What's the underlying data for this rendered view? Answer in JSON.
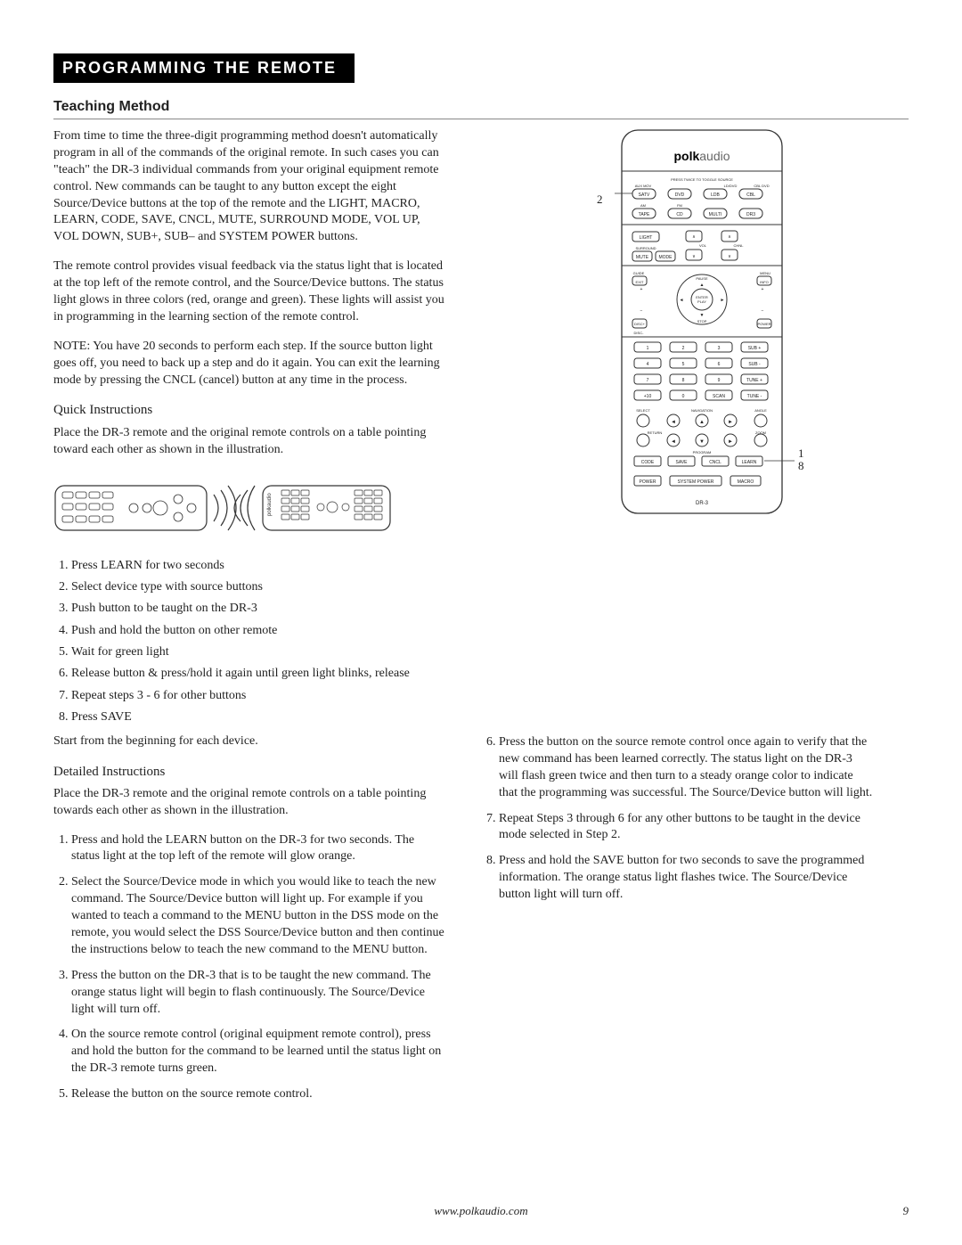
{
  "banner": "PROGRAMMING THE REMOTE",
  "subhead": "Teaching Method",
  "para1": "From time to time the three-digit programming method doesn't automatically program in all of the commands of the original remote. In such cases you can \"teach\" the DR-3 individual commands from your original equipment remote control. New commands can be taught to any button except the eight Source/Device buttons at the top of the remote and the LIGHT, MACRO, LEARN, CODE, SAVE, CNCL, MUTE, SURROUND MODE, VOL UP, VOL DOWN, SUB+, SUB– and SYSTEM POWER buttons.",
  "para2": "The remote control provides visual feedback via the status light that is located at the top left of the remote control, and the Source/Device buttons. The status light glows in three colors (red, orange and green). These lights will assist you in programming in the learning section of the remote control.",
  "para3": "NOTE: You have 20 seconds to perform each step. If the source button light goes off, you need to back up a step and do it again. You can exit the learning mode by pressing the CNCL (cancel) button at any time in the process.",
  "quick_label": "Quick Instructions",
  "quick_intro": "Place the DR-3 remote and the original remote controls on a table pointing toward each other as shown in the illustration.",
  "quick_steps": [
    "Press LEARN for two seconds",
    "Select device type with source buttons",
    "Push button to be taught on the DR-3",
    "Push and hold the button on other remote",
    "Wait for green light",
    "Release button & press/hold it again until green light blinks, release",
    "Repeat steps 3 - 6 for other buttons",
    "Press SAVE"
  ],
  "quick_outro": "Start from the beginning for each device.",
  "detailed_label": "Detailed Instructions",
  "detailed_intro": "Place the DR-3 remote and the original remote controls on a table pointing towards each other as shown in the illustration.",
  "detailed_left": [
    "Press and hold the LEARN button on the DR-3 for two seconds. The status light at the top left of the remote will glow orange.",
    "Select the Source/Device mode in which you would like to teach the new command. The Source/Device button will light up. For example if you wanted to teach a command to the MENU button in the DSS mode on the remote, you would select the DSS Source/Device button and then continue the instructions below to teach the new command to the MENU button.",
    "Press the button on the DR-3 that is to be taught the new command. The orange status light will begin to flash continuously. The Source/Device light will turn off.",
    "On the source remote control (original equipment remote control), press and hold the button for the command to be learned until the status light on the DR-3 remote turns green.",
    "Release the button on the source remote control."
  ],
  "detailed_right": [
    "Press the button on the source remote control once again to verify that the new command has been learned correctly. The status light on the DR-3 will flash green twice and then turn to a steady orange color to indicate that the programming was successful. The Source/Device button will light.",
    "Repeat Steps 3 through 6 for any other buttons to be taught in the device mode selected in Step 2.",
    "Press and hold the SAVE button for two seconds to save the programmed information. The orange status light flashes twice. The Source/Device button light will turn off."
  ],
  "footer_url": "www.polkaudio.com",
  "page_number": "9",
  "callout_2": "2",
  "callout_1": "1",
  "callout_8": "8",
  "remote": {
    "brand": "polkaudio",
    "model": "DR-3",
    "row1": [
      "AUX",
      "DVD",
      "LD/DVD",
      "CBL DVD"
    ],
    "row2": [
      "SATV",
      "DSS",
      "VCR",
      "TV"
    ],
    "row3": [
      "TAPE",
      "CD",
      "MULTI",
      "DR3"
    ],
    "light": "LIGHT",
    "surround": "SURROUND",
    "mute": "MUTE",
    "mode": "MODE",
    "vol": "VOL",
    "chnl": "CHNL",
    "guide": "GUIDE",
    "ext": "EXT",
    "menu": "MENU",
    "info": "INFO",
    "enter": "ENTER",
    "play": "PLAY",
    "pause": "PAUSE",
    "stop": "STOP",
    "disc": "DISC+",
    "discm": "DISC-",
    "power": "POWER",
    "numpad": [
      "1",
      "2",
      "3",
      "SUB +",
      "4",
      "5",
      "6",
      "SUB -",
      "7",
      "8",
      "9",
      "TUNE +",
      "+10",
      "0",
      "SCAN",
      "TUNE -"
    ],
    "nav": [
      "SELECT",
      "NAVIGATION",
      "ANGLE"
    ],
    "bottom_row1": [
      "CODE",
      "SAVE",
      "CNCL",
      "LEARN"
    ],
    "bottom_row2": [
      "POWER",
      "SYSTEM POWER",
      "MACRO"
    ],
    "setup": "SETUP",
    "dvd_menu": "DVD MENU",
    "subttl": "SUB TTL"
  }
}
